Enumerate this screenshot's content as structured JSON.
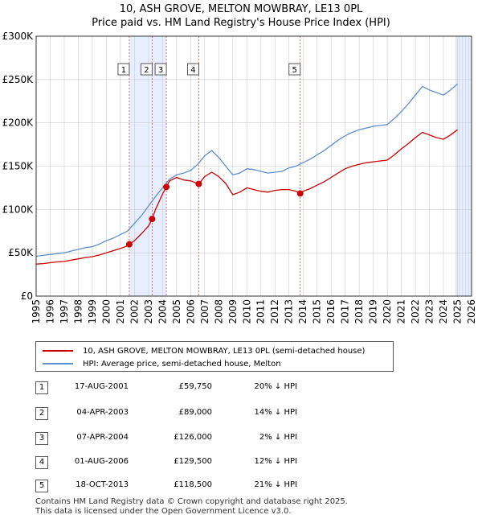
{
  "header": {
    "title": "10, ASH GROVE, MELTON MOWBRAY, LE13 0PL",
    "subtitle": "Price paid vs. HM Land Registry's House Price Index (HPI)"
  },
  "legend": {
    "items": [
      {
        "label": "10, ASH GROVE, MELTON MOWBRAY, LE13 0PL (semi-detached house)",
        "color": "#cc0000"
      },
      {
        "label": "HPI: Average price, semi-detached house, Melton",
        "color": "#5b8fd1"
      }
    ]
  },
  "sales": [
    {
      "num": "1",
      "date": "17-AUG-2001",
      "price": "£59,750",
      "hpi": "20% ↓ HPI"
    },
    {
      "num": "2",
      "date": "04-APR-2003",
      "price": "£89,000",
      "hpi": "14% ↓ HPI"
    },
    {
      "num": "3",
      "date": "07-APR-2004",
      "price": "£126,000",
      "hpi": "2% ↓ HPI"
    },
    {
      "num": "4",
      "date": "01-AUG-2006",
      "price": "£129,500",
      "hpi": "12% ↓ HPI"
    },
    {
      "num": "5",
      "date": "18-OCT-2013",
      "price": "£118,500",
      "hpi": "21% ↓ HPI"
    }
  ],
  "footer": {
    "line1": "Contains HM Land Registry data © Crown copyright and database right 2025.",
    "line2": "This data is licensed under the Open Government Licence v3.0."
  },
  "chart_data": {
    "type": "line",
    "title": "10, ASH GROVE, MELTON MOWBRAY, LE13 0PL",
    "subtitle": "Price paid vs. HM Land Registry's House Price Index (HPI)",
    "xlim": [
      1995,
      2026
    ],
    "ylim": [
      0,
      300000
    ],
    "xticks": [
      1995,
      1996,
      1997,
      1998,
      1999,
      2000,
      2001,
      2002,
      2003,
      2004,
      2005,
      2006,
      2007,
      2008,
      2009,
      2010,
      2011,
      2012,
      2013,
      2014,
      2015,
      2016,
      2017,
      2018,
      2019,
      2020,
      2021,
      2022,
      2023,
      2024,
      2025,
      2026
    ],
    "yticks": [
      {
        "value": 0,
        "label": "£0"
      },
      {
        "value": 50000,
        "label": "£50K"
      },
      {
        "value": 100000,
        "label": "£100K"
      },
      {
        "value": 150000,
        "label": "£150K"
      },
      {
        "value": 200000,
        "label": "£200K"
      },
      {
        "value": 250000,
        "label": "£250K"
      },
      {
        "value": 300000,
        "label": "£300K"
      }
    ],
    "grid": true,
    "colors": {
      "property": "#cc0000",
      "hpi": "#5b8fd1",
      "band": "#e6eeff",
      "marker_line": "#dd4444",
      "grid": "#cccccc"
    },
    "shaded_periods": [
      [
        2001.63,
        2004.27
      ],
      [
        2024.9,
        2026
      ]
    ],
    "series": [
      {
        "name": "HPI: Average price, semi-detached house, Melton",
        "x": [
          1995,
          1995.5,
          1996,
          1996.5,
          1997,
          1997.5,
          1998,
          1998.5,
          1999,
          1999.5,
          2000,
          2000.5,
          2001,
          2001.5,
          2002,
          2002.5,
          2003,
          2003.5,
          2004,
          2004.5,
          2005,
          2005.5,
          2006,
          2006.5,
          2007,
          2007.5,
          2008,
          2008.5,
          2009,
          2009.5,
          2010,
          2010.5,
          2011,
          2011.5,
          2012,
          2012.5,
          2013,
          2013.5,
          2014,
          2014.5,
          2015,
          2015.5,
          2016,
          2016.5,
          2017,
          2017.5,
          2018,
          2018.5,
          2019,
          2019.5,
          2020,
          2020.5,
          2021,
          2021.5,
          2022,
          2022.5,
          2023,
          2023.5,
          2024,
          2024.5,
          2025
        ],
        "values": [
          46000,
          47000,
          48000,
          49000,
          50000,
          52000,
          54000,
          56000,
          57000,
          60000,
          64000,
          67000,
          71000,
          75000,
          84000,
          93000,
          104000,
          115000,
          125000,
          135000,
          140000,
          142000,
          145000,
          152000,
          162000,
          168000,
          160000,
          150000,
          140000,
          142000,
          147000,
          146000,
          144000,
          142000,
          143000,
          144000,
          148000,
          150000,
          154000,
          158000,
          163000,
          168000,
          174000,
          180000,
          185000,
          189000,
          192000,
          194000,
          196000,
          197000,
          198000,
          205000,
          213000,
          222000,
          232000,
          242000,
          238000,
          235000,
          232000,
          238000,
          245000
        ]
      },
      {
        "name": "10, ASH GROVE, MELTON MOWBRAY, LE13 0PL (semi-detached house)",
        "x": [
          1995,
          1995.5,
          1996,
          1996.5,
          1997,
          1997.5,
          1998,
          1998.5,
          1999,
          1999.5,
          2000,
          2000.5,
          2001,
          2001.5,
          2001.63,
          2002,
          2002.5,
          2003,
          2003.26,
          2003.5,
          2004,
          2004.27,
          2004.5,
          2005,
          2005.5,
          2006,
          2006.5,
          2006.58,
          2007,
          2007.5,
          2008,
          2008.5,
          2009,
          2009.5,
          2010,
          2010.5,
          2011,
          2011.5,
          2012,
          2012.5,
          2013,
          2013.5,
          2013.8,
          2014,
          2014.5,
          2015,
          2015.5,
          2016,
          2016.5,
          2017,
          2017.5,
          2018,
          2018.5,
          2019,
          2019.5,
          2020,
          2020.5,
          2021,
          2021.5,
          2022,
          2022.5,
          2023,
          2023.5,
          2024,
          2024.5,
          2025
        ],
        "values": [
          37000,
          37500,
          38500,
          39500,
          40000,
          41500,
          43000,
          44500,
          45500,
          47500,
          50000,
          52500,
          55000,
          58000,
          59750,
          64000,
          72000,
          81000,
          89000,
          100000,
          118000,
          126000,
          133000,
          137000,
          134000,
          133000,
          130000,
          129500,
          138000,
          143000,
          138000,
          130000,
          117000,
          120000,
          125000,
          123000,
          121000,
          120000,
          122000,
          123000,
          123000,
          121000,
          118500,
          121000,
          124000,
          128000,
          132000,
          137000,
          142000,
          147000,
          150000,
          152000,
          154000,
          155000,
          156000,
          157000,
          163000,
          170000,
          176000,
          183000,
          189000,
          186000,
          183000,
          181000,
          186000,
          192000
        ]
      }
    ],
    "sale_points": [
      {
        "label": "1",
        "x": 2001.63,
        "y": 59750
      },
      {
        "label": "2",
        "x": 2003.26,
        "y": 89000
      },
      {
        "label": "3",
        "x": 2004.27,
        "y": 126000
      },
      {
        "label": "4",
        "x": 2006.58,
        "y": 129500
      },
      {
        "label": "5",
        "x": 2013.8,
        "y": 118500
      }
    ]
  }
}
